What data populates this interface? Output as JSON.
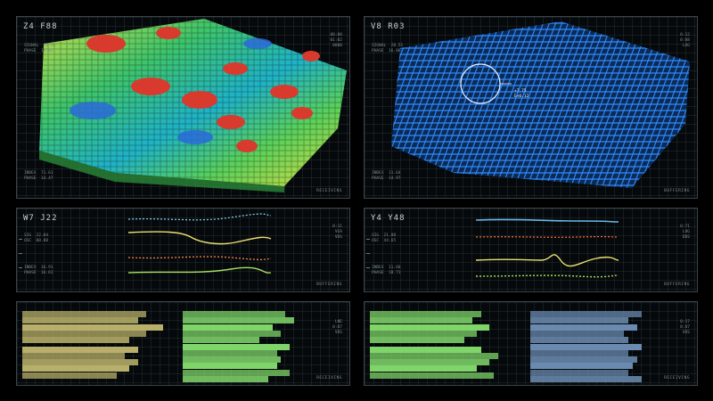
{
  "colors": {
    "panel_border": "#3a4448",
    "olive_bars": "#b8b06a",
    "green_bars": "#7fd46a",
    "blue_bars": "#6a8ab0",
    "wire_blue": "#2f8cff"
  },
  "panels": {
    "terrain_heat": {
      "title": "Z4 F88",
      "meta": [
        "SIGNAL  42.66",
        "PHASE  16.42"
      ],
      "side": [
        "00:00",
        "01:02",
        "0000"
      ],
      "footer": [
        "INDEX  71.61",
        "PHASE  14.47"
      ],
      "status": "RECEIVING"
    },
    "terrain_wire": {
      "title": "V8 R03",
      "meta": [
        "SIGNAL  28.51",
        "PHASE  16.06"
      ],
      "side": [
        "0:12",
        "0:08",
        "LOG"
      ],
      "footer": [
        "INDEX  11.64",
        "PHASE  14.97"
      ],
      "status": "BUFFERING",
      "callout": [
        "+7.75",
        "E+0.12"
      ]
    },
    "wave_left": {
      "title": "W7 J22",
      "meta": [
        "SIG  22.04",
        "OSC  00.00"
      ],
      "side": [
        "0:11",
        "VGA",
        "VDS"
      ],
      "footer": [
        "INDEX  16.91",
        "PHASE  16.61"
      ],
      "status": "BUFFERING"
    },
    "wave_right": {
      "title": "Y4 Y48",
      "meta": [
        "SIG  21.88",
        "OSC  44.65"
      ],
      "side": [
        "0:71",
        "LOG",
        "DDS"
      ],
      "footer": [
        "INDEX  11.66",
        "PHASE  18.71"
      ],
      "status": "BUFFERING"
    },
    "bars_left": {
      "side": [
        "LNE",
        "0:07",
        "VDS"
      ],
      "status": "RECEIVING",
      "olive_values": [
        0.58,
        0.54,
        0.66,
        0.58,
        0.5,
        0.54,
        0.48,
        0.54,
        0.5,
        0.44
      ],
      "green_values": [
        0.48,
        0.52,
        0.42,
        0.46,
        0.36,
        0.5,
        0.44,
        0.46,
        0.44,
        0.5,
        0.4
      ]
    },
    "bars_right": {
      "side": [
        "0:17",
        "0:07",
        "VDS"
      ],
      "status": "RECEIVING",
      "green_values": [
        0.52,
        0.48,
        0.56,
        0.5,
        0.44,
        0.52,
        0.6,
        0.56,
        0.5,
        0.58
      ],
      "blue_values": [
        0.5,
        0.44,
        0.48,
        0.42,
        0.44,
        0.5,
        0.44,
        0.48,
        0.46,
        0.44,
        0.5
      ]
    }
  }
}
